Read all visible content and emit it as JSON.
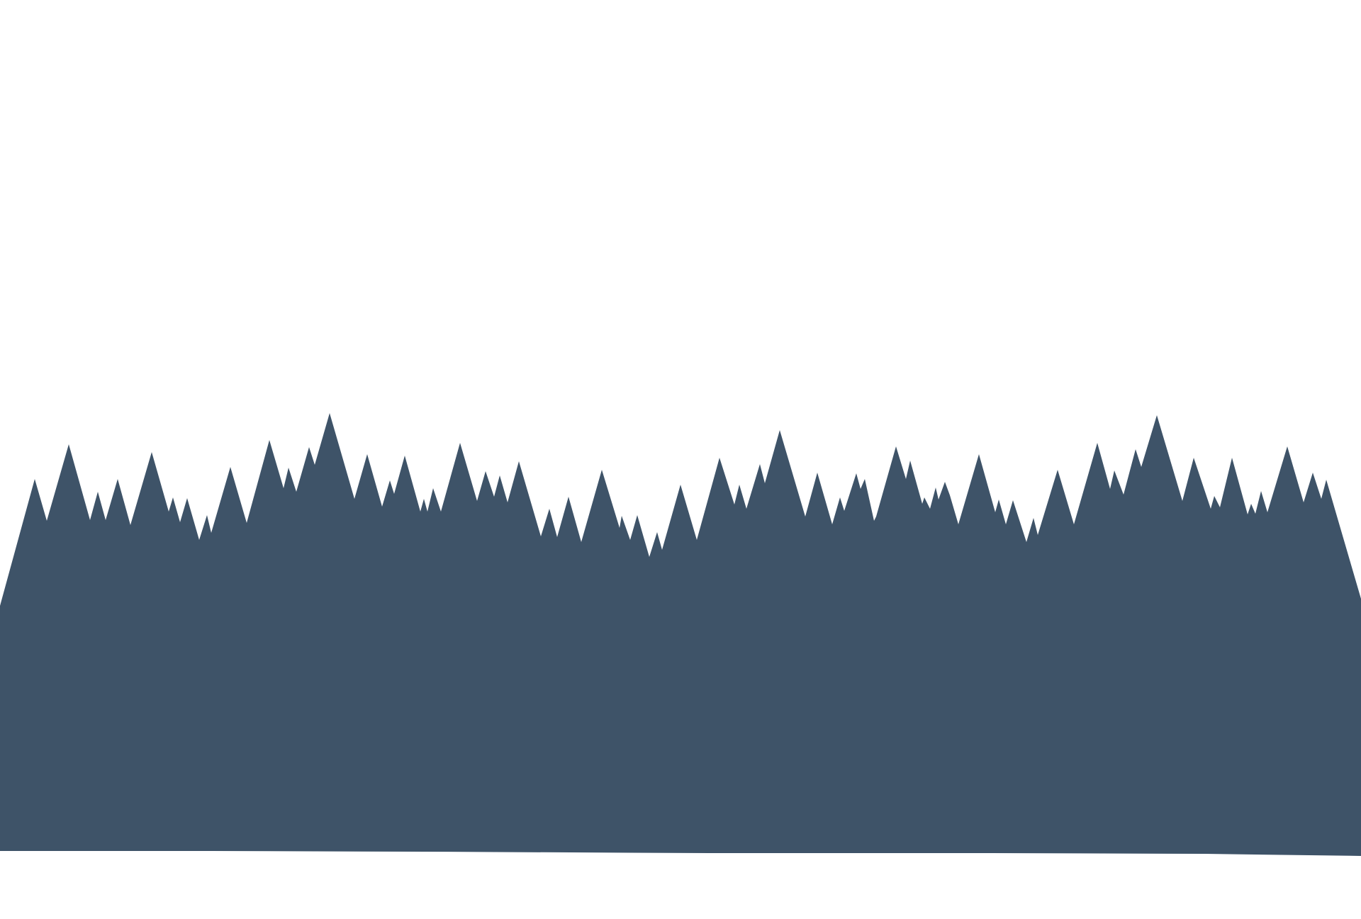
{
  "scene": {
    "background_color": "#ffffff",
    "silhouette_color": "#3e5368",
    "description_shape": "jagged-spiky-silhouette"
  }
}
